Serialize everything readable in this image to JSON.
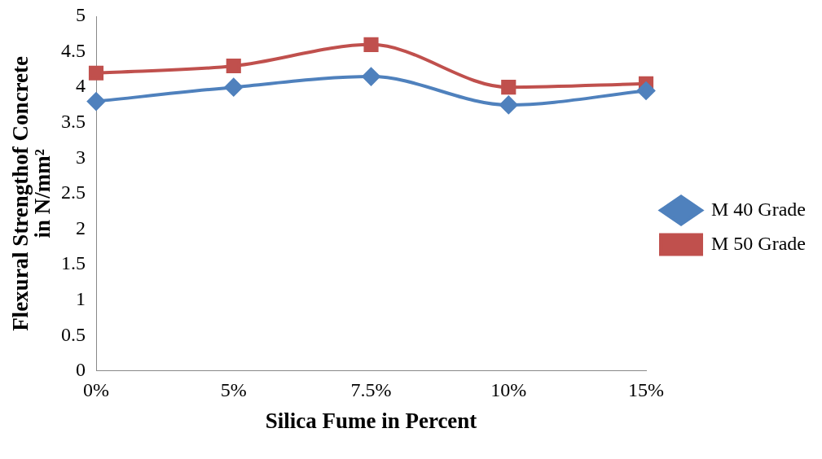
{
  "chart_data": {
    "type": "line",
    "xlabel": "Silica Fume in Percent",
    "ylabel": "Flexural Strengthof Concrete\nin N/mm²",
    "categories": [
      "0%",
      "5%",
      "7.5%",
      "10%",
      "15%"
    ],
    "series": [
      {
        "name": "M 40 Grade",
        "color": "#4f81bd",
        "marker": "diamond",
        "values": [
          3.8,
          4.0,
          4.15,
          3.75,
          3.95
        ]
      },
      {
        "name": "M 50 Grade",
        "color": "#c0504d",
        "marker": "square",
        "values": [
          4.2,
          4.3,
          4.6,
          4.0,
          4.05
        ]
      }
    ],
    "ylim": [
      0,
      5
    ],
    "yticks": [
      0,
      0.5,
      1,
      1.5,
      2,
      2.5,
      3,
      3.5,
      4,
      4.5,
      5
    ],
    "grid": false,
    "legend": "right"
  }
}
